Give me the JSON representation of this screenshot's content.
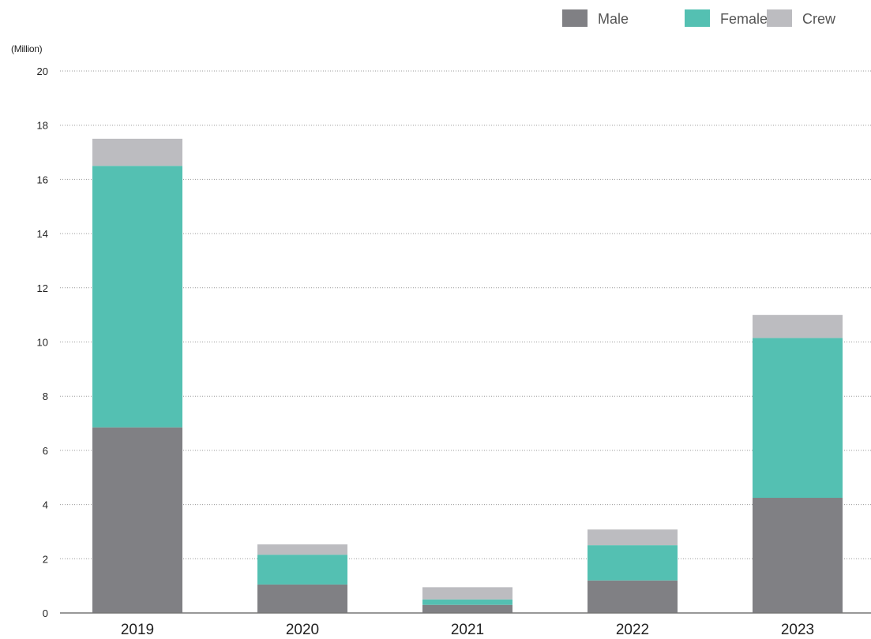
{
  "chart_data": {
    "type": "bar",
    "stacked": true,
    "unit_label": "(Million)",
    "categories": [
      "2019",
      "2020",
      "2021",
      "2022",
      "2023"
    ],
    "series": [
      {
        "name": "Male",
        "color": "#808084",
        "values": [
          6.85,
          1.05,
          0.3,
          1.2,
          4.25
        ]
      },
      {
        "name": "Female",
        "color": "#54c0b2",
        "values": [
          9.65,
          1.1,
          0.2,
          1.3,
          5.9
        ]
      },
      {
        "name": "Crew",
        "color": "#bcbcc0",
        "values": [
          1.0,
          0.38,
          0.45,
          0.58,
          0.85
        ]
      }
    ],
    "ylim": [
      0,
      20
    ],
    "yticks": [
      0,
      2,
      4,
      6,
      8,
      10,
      12,
      14,
      16,
      18,
      20
    ],
    "grid": true,
    "legend_position": "top-right"
  }
}
